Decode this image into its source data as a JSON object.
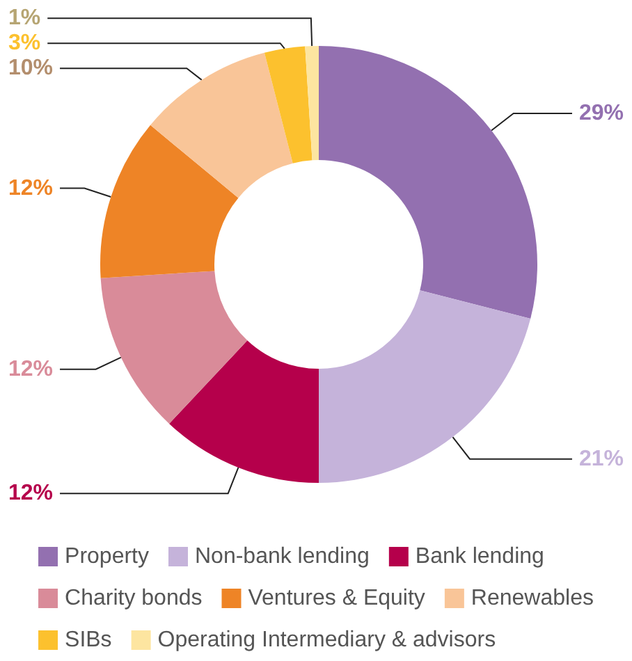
{
  "chart_data": {
    "type": "donut",
    "categories": [
      "Property",
      "Non-bank lending",
      "Bank lending",
      "Charity bonds",
      "Ventures & Equity",
      "Renewables",
      "SIBs",
      "Operating Intermediary & advisors"
    ],
    "values": [
      29,
      21,
      12,
      12,
      12,
      10,
      3,
      1
    ],
    "colors": [
      "#9370b0",
      "#c5b3da",
      "#b5004b",
      "#d98b99",
      "#ee8426",
      "#f9c598",
      "#fcc12e",
      "#fde5a0"
    ],
    "value_labels": [
      "29%",
      "21%",
      "12%",
      "12%",
      "12%",
      "10%",
      "3%",
      "1%"
    ],
    "legend": "bottom"
  }
}
